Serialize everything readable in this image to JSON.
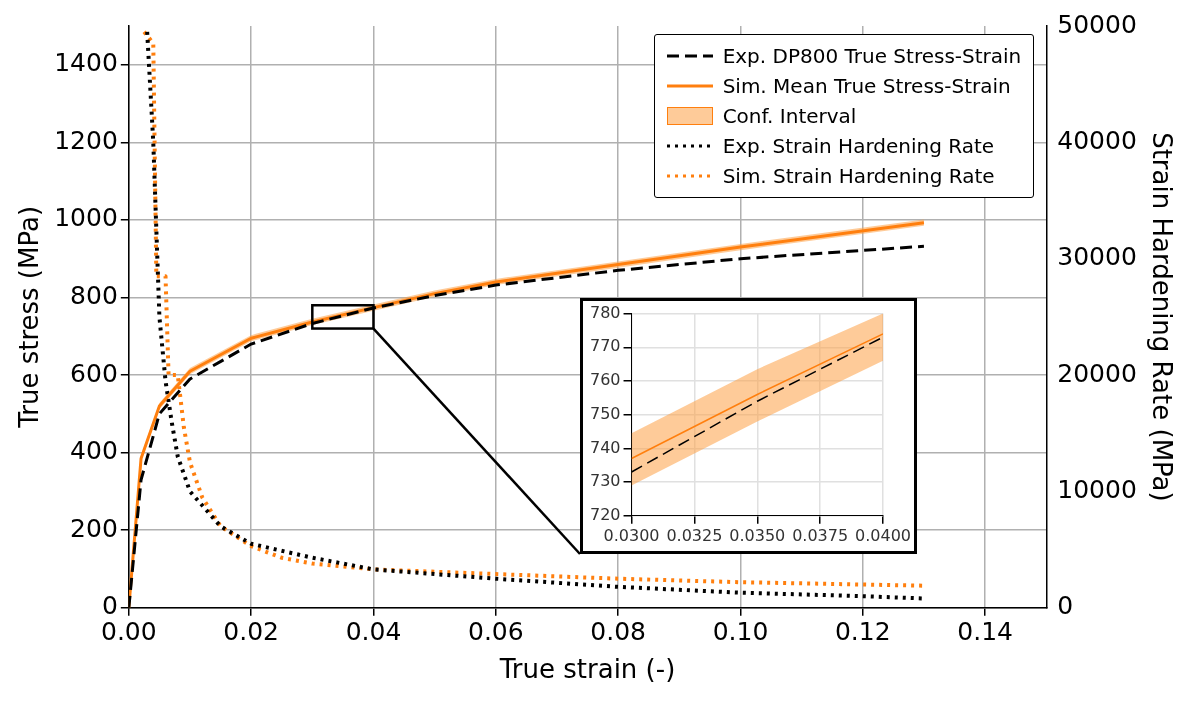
{
  "chart_data": [
    {
      "type": "line",
      "xlabel": "True strain (-)",
      "ylabel": "True stress (MPa)",
      "y2label": "Strain Hardening Rate (MPa)",
      "xlim": [
        0,
        0.15
      ],
      "xticks": [
        {
          "value": 0,
          "label": "0.00"
        },
        {
          "value": 0.02,
          "label": "0.02"
        },
        {
          "value": 0.04,
          "label": "0.04"
        },
        {
          "value": 0.06,
          "label": "0.06"
        },
        {
          "value": 0.08,
          "label": "0.08"
        },
        {
          "value": 0.1,
          "label": "0.10"
        },
        {
          "value": 0.12,
          "label": "0.12"
        },
        {
          "value": 0.14,
          "label": "0.14"
        }
      ],
      "ylim": [
        0,
        1500
      ],
      "yticks": [
        0,
        200,
        400,
        600,
        800,
        1000,
        1200,
        1400
      ],
      "y2lim": [
        0,
        50000
      ],
      "y2ticks": [
        0,
        10000,
        20000,
        30000,
        40000,
        50000
      ],
      "grid": true,
      "legend": "top right",
      "annotations": [
        "Conf. Interval"
      ],
      "series": [
        {
          "name": "Exp. DP800 True Stress-Strain",
          "line_style": "dashed",
          "color": "#000000",
          "x": [
            0,
            0.002,
            0.005,
            0.01,
            0.02,
            0.03,
            0.04,
            0.05,
            0.06,
            0.08,
            0.1,
            0.13
          ],
          "values": [
            0,
            330,
            500,
            590,
            680,
            733,
            773,
            805,
            832,
            870,
            900,
            932
          ]
        },
        {
          "name": "Sim. Mean True Stress-Strain",
          "line_style": "solid",
          "color": "#ff7f0e",
          "x": [
            0,
            0.002,
            0.005,
            0.01,
            0.02,
            0.03,
            0.04,
            0.05,
            0.06,
            0.08,
            0.1,
            0.13
          ],
          "values": [
            0,
            385,
            520,
            610,
            695,
            737,
            774,
            810,
            840,
            885,
            930,
            993
          ],
          "lower": [
            0,
            377,
            512,
            602,
            687,
            729,
            766,
            802,
            832,
            877,
            922,
            985
          ],
          "upper": [
            0,
            393,
            528,
            618,
            703,
            745,
            782,
            818,
            848,
            893,
            938,
            1001
          ]
        },
        {
          "name": "Exp. Strain Hardening Rate",
          "line_style": "dotted",
          "axis": "y2",
          "color": "#000000",
          "x": [
            0.003,
            0.004,
            0.005,
            0.006,
            0.007,
            0.008,
            0.01,
            0.015,
            0.02,
            0.03,
            0.04,
            0.06,
            0.08,
            0.1,
            0.12,
            0.13
          ],
          "values": [
            49500,
            40000,
            25000,
            19500,
            16000,
            13000,
            10000,
            7000,
            5500,
            4300,
            3300,
            2500,
            1800,
            1300,
            1000,
            800
          ]
        },
        {
          "name": "Sim. Strain Hardening Rate",
          "line_style": "dotted",
          "axis": "y2",
          "color": "#ff7f0e",
          "x": [
            0.0025,
            0.004,
            0.0045,
            0.006,
            0.0065,
            0.008,
            0.009,
            0.01,
            0.012,
            0.015,
            0.02,
            0.025,
            0.03,
            0.04,
            0.06,
            0.08,
            0.1,
            0.13
          ],
          "values": [
            49500,
            48500,
            28500,
            28500,
            20000,
            20000,
            15500,
            12500,
            9500,
            7000,
            5300,
            4300,
            3800,
            3300,
            2900,
            2500,
            2200,
            1900
          ]
        }
      ]
    },
    {
      "type": "line",
      "xlim": [
        0.03,
        0.04
      ],
      "xticks": [
        {
          "value": 0.03,
          "label": "0.0300"
        },
        {
          "value": 0.0325,
          "label": "0.0325"
        },
        {
          "value": 0.035,
          "label": "0.0350"
        },
        {
          "value": 0.0375,
          "label": "0.0375"
        },
        {
          "value": 0.04,
          "label": "0.0400"
        }
      ],
      "ylim": [
        720,
        780
      ],
      "yticks": [
        720,
        730,
        740,
        750,
        760,
        770,
        780
      ],
      "grid": true,
      "series": [
        {
          "line_style": "solid",
          "color": "#ff7f0e",
          "x": [
            0.03,
            0.035,
            0.04
          ],
          "values": [
            737,
            756,
            774
          ],
          "lower": [
            729,
            748,
            766
          ],
          "upper": [
            744.5,
            763.5,
            780
          ]
        },
        {
          "line_style": "dashed",
          "color": "#000000",
          "x": [
            0.03,
            0.035,
            0.04
          ],
          "values": [
            733,
            754,
            773
          ]
        }
      ]
    }
  ]
}
